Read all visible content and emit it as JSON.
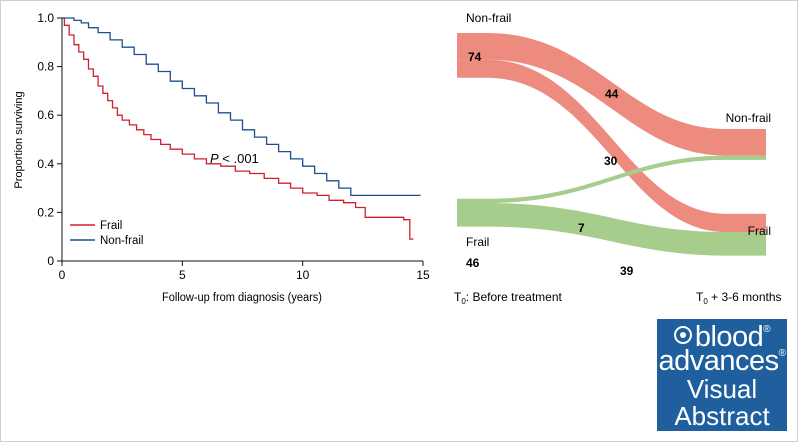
{
  "chart_data": [
    {
      "type": "line",
      "subtype": "kaplan-meier",
      "title": "",
      "xlabel": "Follow-up from diagnosis (years)",
      "ylabel": "Proportion surviving",
      "xlim": [
        0,
        15
      ],
      "ylim": [
        0,
        1.0
      ],
      "x_ticks": [
        "0",
        "5",
        "10",
        "15"
      ],
      "y_ticks": [
        "0",
        "0.2",
        "0.4",
        "0.6",
        "0.8",
        "1.0"
      ],
      "annotation": {
        "p_label": "P",
        "p_text": " < .001"
      },
      "legend": {
        "position": "bottom-left"
      },
      "series": [
        {
          "name": "Frail",
          "color": "#d0202e",
          "points": [
            [
              0,
              1.0
            ],
            [
              0.1,
              0.97
            ],
            [
              0.3,
              0.93
            ],
            [
              0.5,
              0.89
            ],
            [
              0.7,
              0.86
            ],
            [
              0.9,
              0.83
            ],
            [
              1.1,
              0.79
            ],
            [
              1.3,
              0.76
            ],
            [
              1.5,
              0.72
            ],
            [
              1.7,
              0.69
            ],
            [
              1.9,
              0.66
            ],
            [
              2.1,
              0.63
            ],
            [
              2.3,
              0.6
            ],
            [
              2.5,
              0.58
            ],
            [
              2.8,
              0.56
            ],
            [
              3.1,
              0.54
            ],
            [
              3.4,
              0.52
            ],
            [
              3.7,
              0.5
            ],
            [
              4.1,
              0.48
            ],
            [
              4.5,
              0.46
            ],
            [
              5.0,
              0.44
            ],
            [
              5.5,
              0.42
            ],
            [
              6.0,
              0.4
            ],
            [
              6.6,
              0.39
            ],
            [
              7.2,
              0.37
            ],
            [
              7.8,
              0.36
            ],
            [
              8.4,
              0.34
            ],
            [
              9.0,
              0.32
            ],
            [
              9.5,
              0.3
            ],
            [
              10.0,
              0.28
            ],
            [
              10.6,
              0.27
            ],
            [
              11.1,
              0.25
            ],
            [
              11.7,
              0.24
            ],
            [
              12.2,
              0.22
            ],
            [
              12.6,
              0.18
            ],
            [
              13.2,
              0.18
            ],
            [
              14.2,
              0.17
            ],
            [
              14.45,
              0.17
            ],
            [
              14.45,
              0.09
            ],
            [
              14.6,
              0.09
            ]
          ]
        },
        {
          "name": "Non-frail",
          "color": "#1f4f8f",
          "points": [
            [
              0,
              1.0
            ],
            [
              0.3,
              1.0
            ],
            [
              0.5,
              0.99
            ],
            [
              0.8,
              0.98
            ],
            [
              1.1,
              0.96
            ],
            [
              1.5,
              0.94
            ],
            [
              2.0,
              0.91
            ],
            [
              2.5,
              0.88
            ],
            [
              3.0,
              0.85
            ],
            [
              3.5,
              0.81
            ],
            [
              4.0,
              0.78
            ],
            [
              4.5,
              0.74
            ],
            [
              5.0,
              0.71
            ],
            [
              5.5,
              0.68
            ],
            [
              6.0,
              0.65
            ],
            [
              6.5,
              0.61
            ],
            [
              7.0,
              0.58
            ],
            [
              7.5,
              0.54
            ],
            [
              8.0,
              0.51
            ],
            [
              8.5,
              0.48
            ],
            [
              9.0,
              0.45
            ],
            [
              9.5,
              0.42
            ],
            [
              10.0,
              0.39
            ],
            [
              10.5,
              0.36
            ],
            [
              11.0,
              0.33
            ],
            [
              11.5,
              0.3
            ],
            [
              12.0,
              0.27
            ],
            [
              12.5,
              0.27
            ],
            [
              14.0,
              0.27
            ],
            [
              14.9,
              0.27
            ]
          ]
        }
      ]
    },
    {
      "type": "sankey",
      "title": "",
      "left_axis_label": "Before treatment",
      "left_axis_sym": "T",
      "left_axis_sub": "0",
      "left_axis_sep": ": ",
      "right_axis_label": " + 3-6 months",
      "right_axis_sym": "T",
      "right_axis_sub": "0",
      "nodes_left": [
        {
          "name": "Non-frail",
          "value": 74,
          "color": "#ec8b7e"
        },
        {
          "name": "Frail",
          "value": 46,
          "color": "#a6cd8c"
        }
      ],
      "nodes_right": [
        {
          "name": "Non-frail",
          "value": 51
        },
        {
          "name": "Frail",
          "value": 69
        }
      ],
      "flows": [
        {
          "from": "Non-frail",
          "to": "Non-frail",
          "value": 44,
          "color": "#ec8b7e"
        },
        {
          "from": "Non-frail",
          "to": "Frail",
          "value": 30,
          "color": "#ec8b7e"
        },
        {
          "from": "Frail",
          "to": "Non-frail",
          "value": 7,
          "color": "#a6cd8c"
        },
        {
          "from": "Frail",
          "to": "Frail",
          "value": 39,
          "color": "#a6cd8c"
        }
      ]
    }
  ],
  "badge": {
    "line1": "blood",
    "line2": "advances",
    "line3": "Visual",
    "line4": "Abstract",
    "reg_mark": "®",
    "color": "#1f5f9e"
  }
}
